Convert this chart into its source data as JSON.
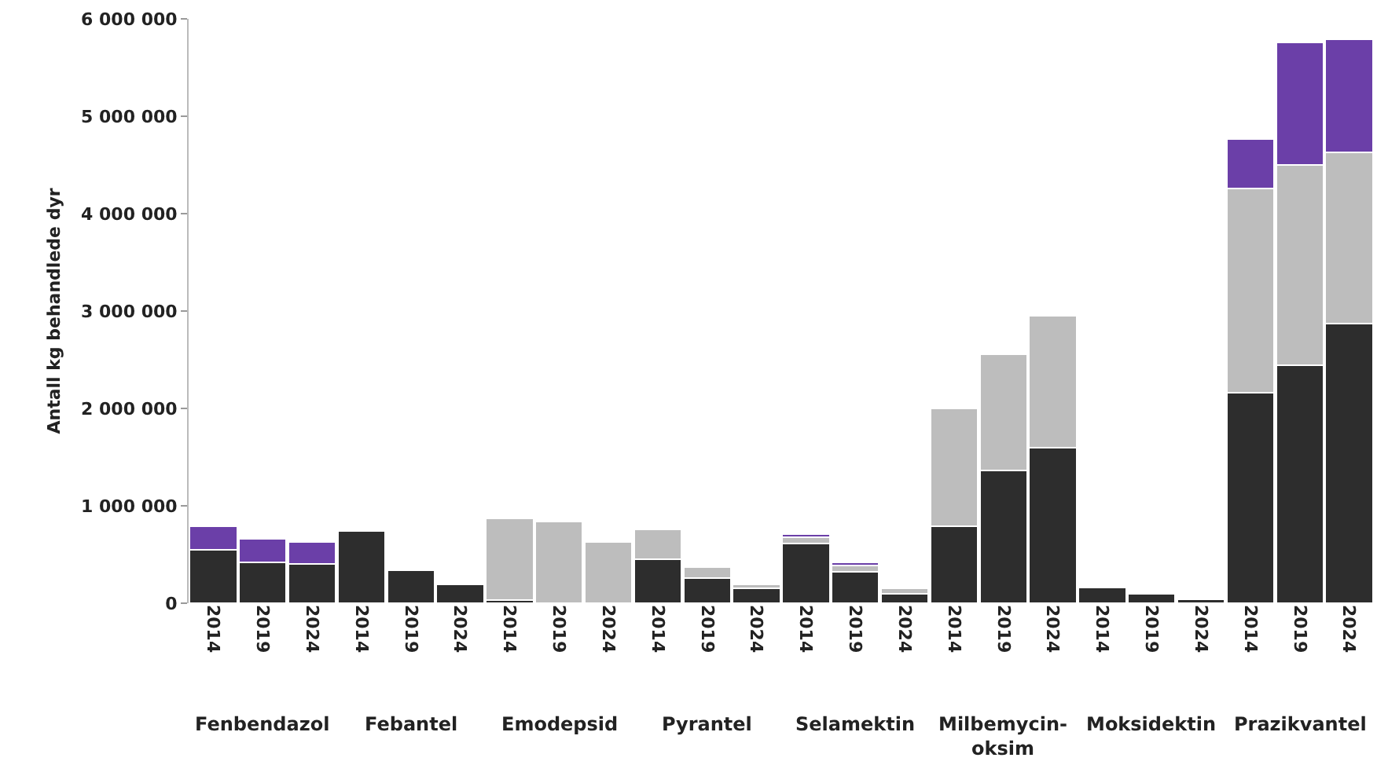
{
  "chart_data": {
    "type": "bar",
    "stacked": true,
    "ylabel": "Antall kg behandlede dyr",
    "categories": [
      "2014",
      "2019",
      "2024",
      "2014",
      "2019",
      "2024",
      "2014",
      "2019",
      "2024",
      "2014",
      "2019",
      "2024",
      "2014",
      "2019",
      "2024",
      "2014",
      "2019",
      "2024",
      "2014",
      "2019",
      "2024",
      "2014",
      "2019",
      "2024"
    ],
    "series": [
      {
        "color": "#2d2d2d",
        "values": [
          550000,
          420000,
          400000,
          740000,
          340000,
          190000,
          30000,
          null,
          null,
          450000,
          260000,
          150000,
          610000,
          320000,
          100000,
          790000,
          1360000,
          1600000,
          160000,
          100000,
          40000,
          2160000,
          2440000,
          2870000
        ]
      },
      {
        "color": "#bdbdbd",
        "values": [
          null,
          null,
          null,
          null,
          null,
          null,
          840000,
          840000,
          630000,
          310000,
          110000,
          40000,
          70000,
          70000,
          50000,
          1210000,
          1200000,
          1350000,
          null,
          null,
          null,
          2100000,
          2060000,
          1760000
        ]
      },
      {
        "color": "#6b3fa8",
        "values": [
          240000,
          240000,
          230000,
          null,
          null,
          null,
          null,
          null,
          null,
          null,
          null,
          null,
          30000,
          30000,
          null,
          null,
          null,
          null,
          null,
          null,
          null,
          510000,
          1260000,
          1160000
        ]
      }
    ],
    "ylim": [
      0,
      6000000
    ],
    "yticks": [
      0,
      {
        "value": 1000000,
        "label": "1 000 000"
      },
      {
        "value": 2000000,
        "label": "2 000 000"
      },
      {
        "value": 3000000,
        "label": "3 000 000"
      },
      {
        "value": 4000000,
        "label": "4 000 000"
      },
      {
        "value": 5000000,
        "label": "5 000 000"
      },
      {
        "value": 6000000,
        "label": "6 000 000"
      }
    ],
    "annotations": [
      "Fenbendazol",
      "Febantel",
      "Emodepsid",
      "Pyrantel",
      "Selamektin",
      "Milbemycin-oksim",
      "Moksidektin",
      "Prazikvantel"
    ],
    "grid": false
  }
}
